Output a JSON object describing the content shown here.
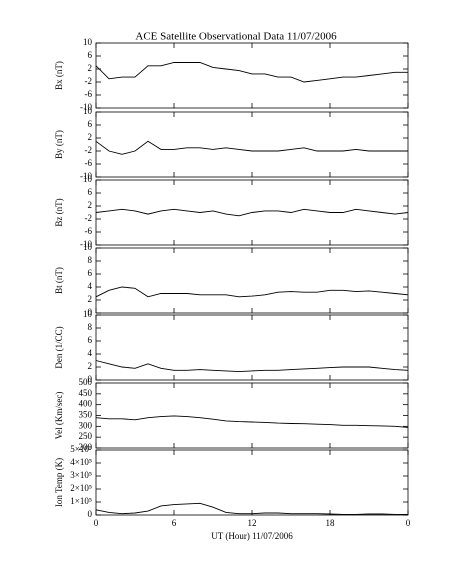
{
  "chart_data": {
    "type": "line",
    "title": "ACE Satellite Observational Data   11/07/2006",
    "xlabel": "UT (Hour)  11/07/2006",
    "xlim": [
      0,
      24
    ],
    "xticks": [
      0,
      6,
      12,
      18,
      {
        "value": 24,
        "label": "0"
      }
    ],
    "x": [
      0,
      1,
      2,
      3,
      4,
      5,
      6,
      7,
      8,
      9,
      10,
      11,
      12,
      13,
      14,
      15,
      16,
      17,
      18,
      19,
      20,
      21,
      22,
      23,
      24
    ],
    "panels": [
      {
        "ylabel": "Bx (nT)",
        "ylim": [
          -10,
          10
        ],
        "yticks": [
          -10,
          -6,
          -2,
          2,
          6,
          10
        ],
        "values": [
          3,
          -1,
          -0.5,
          -0.5,
          3,
          3,
          4,
          4,
          4,
          2.5,
          2,
          1.5,
          0.5,
          0.5,
          -0.5,
          -0.5,
          -2,
          -1.5,
          -1,
          -0.5,
          -0.5,
          0,
          0.5,
          1,
          1
        ]
      },
      {
        "ylabel": "By (nT)",
        "ylim": [
          -10,
          10
        ],
        "yticks": [
          -10,
          -6,
          -2,
          2,
          6,
          10
        ],
        "values": [
          1,
          -2,
          -3,
          -2,
          1,
          -1.5,
          -1.5,
          -1,
          -1,
          -1.5,
          -1,
          -1.5,
          -2,
          -2,
          -2,
          -1.5,
          -1,
          -2,
          -2,
          -2,
          -1.5,
          -2,
          -2,
          -2,
          -2
        ]
      },
      {
        "ylabel": "Bz (nT)",
        "ylim": [
          -10,
          10
        ],
        "yticks": [
          -10,
          -6,
          -2,
          2,
          6,
          10
        ],
        "values": [
          0,
          0.5,
          1,
          0.5,
          -0.5,
          0.5,
          1,
          0.5,
          0,
          0.5,
          -0.5,
          -1,
          0,
          0.5,
          0.5,
          0,
          1,
          0.5,
          0,
          0,
          1,
          0.5,
          0,
          -0.5,
          0
        ]
      },
      {
        "ylabel": "Bt (nT)",
        "ylim": [
          0,
          10
        ],
        "yticks": [
          0,
          2,
          4,
          6,
          8,
          10
        ],
        "values": [
          2.5,
          3.5,
          4,
          3.8,
          2.5,
          3,
          3,
          3,
          2.8,
          2.8,
          2.8,
          2.5,
          2.6,
          2.8,
          3.2,
          3.3,
          3.2,
          3.2,
          3.5,
          3.5,
          3.3,
          3.4,
          3.2,
          3,
          2.8
        ]
      },
      {
        "ylabel": "Den (1/CC)",
        "ylim": [
          0,
          10
        ],
        "yticks": [
          0,
          2,
          4,
          6,
          8,
          10
        ],
        "values": [
          3,
          2.5,
          2,
          1.8,
          2.5,
          1.8,
          1.5,
          1.5,
          1.6,
          1.5,
          1.4,
          1.3,
          1.4,
          1.5,
          1.5,
          1.6,
          1.7,
          1.8,
          1.9,
          2,
          2,
          2,
          1.8,
          1.6,
          1.5
        ]
      },
      {
        "ylabel": "Vel (Km/sec)",
        "ylim": [
          200,
          500
        ],
        "yticks": [
          200,
          250,
          300,
          350,
          400,
          450,
          500
        ],
        "values": [
          340,
          335,
          335,
          330,
          340,
          345,
          348,
          345,
          340,
          333,
          325,
          322,
          320,
          318,
          315,
          313,
          312,
          310,
          308,
          305,
          305,
          303,
          302,
          300,
          295
        ]
      },
      {
        "ylabel": "Ion Temp (K)",
        "ylim": [
          0,
          500000
        ],
        "yticks": [
          0,
          {
            "value": 100000,
            "label": "1×10⁵"
          },
          {
            "value": 200000,
            "label": "2×10⁵"
          },
          {
            "value": 300000,
            "label": "3×10⁵"
          },
          {
            "value": 400000,
            "label": "4×10⁵"
          },
          {
            "value": 500000,
            "label": "5×10⁵"
          }
        ],
        "values": [
          40000,
          20000,
          10000,
          15000,
          30000,
          70000,
          80000,
          85000,
          90000,
          60000,
          20000,
          10000,
          10000,
          15000,
          15000,
          10000,
          10000,
          10000,
          8000,
          5000,
          5000,
          8000,
          8000,
          5000,
          5000
        ]
      }
    ]
  }
}
